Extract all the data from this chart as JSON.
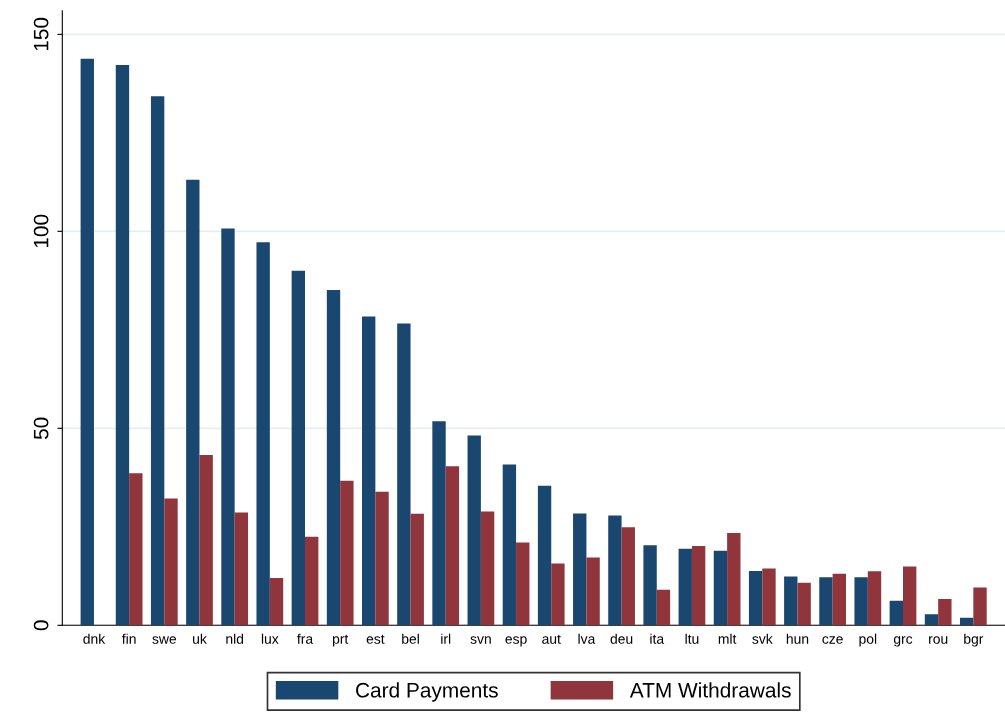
{
  "chart_data": {
    "type": "bar",
    "categories": [
      "dnk",
      "fin",
      "swe",
      "uk",
      "nld",
      "lux",
      "fra",
      "prt",
      "est",
      "bel",
      "irl",
      "svn",
      "esp",
      "aut",
      "lva",
      "deu",
      "ita",
      "ltu",
      "mlt",
      "svk",
      "hun",
      "cze",
      "pol",
      "grc",
      "rou",
      "bgr"
    ],
    "series": [
      {
        "name": "Card Payments",
        "color": "#1a476f",
        "values": [
          143.8,
          142.2,
          134.3,
          113.1,
          100.7,
          97.2,
          90.0,
          85.1,
          78.4,
          76.6,
          51.8,
          48.2,
          40.8,
          35.4,
          28.4,
          27.9,
          20.3,
          19.4,
          18.9,
          13.8,
          12.4,
          12.2,
          12.2,
          6.2,
          2.8,
          1.9
        ]
      },
      {
        "name": "ATM Withdrawals",
        "color": "#90353b",
        "values": [
          null,
          38.6,
          32.2,
          43.2,
          28.6,
          12.0,
          22.5,
          36.7,
          33.9,
          28.3,
          40.4,
          28.9,
          21.0,
          15.7,
          17.2,
          24.9,
          9.0,
          20.1,
          23.4,
          14.4,
          10.8,
          13.1,
          13.7,
          14.9,
          6.7,
          9.6
        ]
      }
    ],
    "ylim": [
      0,
      156
    ],
    "yticks": [
      0,
      50,
      100,
      150
    ],
    "grid": "y",
    "legend": "bottom"
  }
}
